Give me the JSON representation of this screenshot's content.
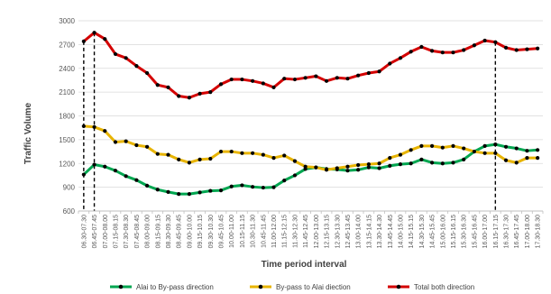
{
  "chart_data": {
    "type": "line",
    "xlabel": "Time period interval",
    "ylabel": "Traffic Volume",
    "ylim": [
      600,
      3000
    ],
    "yticks": [
      600,
      900,
      1200,
      1500,
      1800,
      2100,
      2400,
      2700,
      3000
    ],
    "grid": "horizontal",
    "legend_position": "bottom",
    "categories": [
      "06.30-07.30",
      "06.45-07.45",
      "07.00-08.00",
      "07.15-08.15",
      "07.30-08.30",
      "07.45-08.45",
      "08.00-09.00",
      "08.15-09.15",
      "08.30-09.30",
      "08.45-09.45",
      "09.00-10.00",
      "09.15-10.15",
      "09.30-10.30",
      "09.45-10.45",
      "10.00-11.00",
      "10.15-11.15",
      "10.30-11.30",
      "10.45-11.45",
      "11.00-12.00",
      "11.15-12.15",
      "11.30-12.30",
      "11.45-12.45",
      "12.00-13.00",
      "12.15-13.15",
      "12.30-13.30",
      "12.45-13.45",
      "13.00-14.00",
      "13.15-14.15",
      "13.30-14.30",
      "13.45-14.45",
      "14.00-15.00",
      "14.15-15.15",
      "14.30-15.30",
      "14.45-15.45",
      "15.00-16.00",
      "15.15-16.15",
      "15.30-16.30",
      "15.45-16.45",
      "16.00-17.00",
      "16.15-17.15",
      "16.30-17.30",
      "16.45-17.45",
      "17.00-18.00",
      "17.30-18.30"
    ],
    "series": [
      {
        "name": "Alai to By-pass direction",
        "line_color": "#00a650",
        "values": [
          1060,
          1185,
          1160,
          1110,
          1040,
          990,
          920,
          870,
          840,
          815,
          815,
          835,
          855,
          860,
          910,
          925,
          905,
          895,
          900,
          985,
          1050,
          1130,
          1150,
          1130,
          1125,
          1110,
          1120,
          1150,
          1140,
          1170,
          1190,
          1200,
          1250,
          1210,
          1200,
          1210,
          1250,
          1350,
          1420,
          1440,
          1410,
          1390,
          1360,
          1370
        ]
      },
      {
        "name": "By-pass to Alai diection",
        "line_color": "#e8b400",
        "values": [
          1670,
          1660,
          1610,
          1470,
          1480,
          1430,
          1410,
          1320,
          1310,
          1250,
          1210,
          1250,
          1260,
          1350,
          1350,
          1330,
          1330,
          1310,
          1270,
          1300,
          1230,
          1160,
          1150,
          1120,
          1140,
          1160,
          1180,
          1190,
          1200,
          1270,
          1310,
          1370,
          1420,
          1420,
          1400,
          1420,
          1390,
          1350,
          1330,
          1330,
          1240,
          1210,
          1270,
          1270
        ]
      },
      {
        "name": "Total both direction",
        "line_color": "#d40000",
        "values": [
          2740,
          2850,
          2770,
          2580,
          2530,
          2430,
          2340,
          2190,
          2160,
          2050,
          2030,
          2080,
          2100,
          2200,
          2260,
          2260,
          2240,
          2210,
          2160,
          2270,
          2260,
          2280,
          2300,
          2240,
          2280,
          2270,
          2310,
          2340,
          2360,
          2460,
          2530,
          2610,
          2670,
          2620,
          2600,
          2600,
          2630,
          2690,
          2750,
          2730,
          2660,
          2630,
          2640,
          2650
        ]
      }
    ],
    "reference_lines": [
      {
        "category": "06.30-07.30",
        "style": "dashed"
      },
      {
        "category": "06.45-07.45",
        "style": "dashed"
      },
      {
        "category": "16.15-17.15",
        "style": "dashed"
      }
    ]
  }
}
